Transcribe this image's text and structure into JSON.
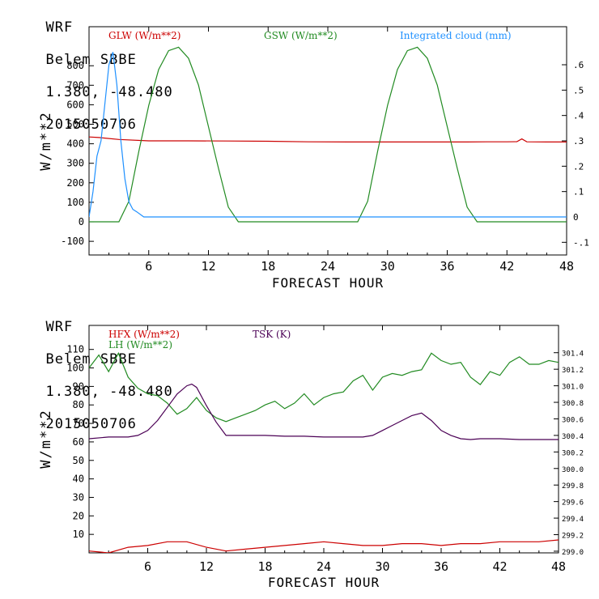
{
  "chart_data": [
    {
      "type": "line",
      "header": {
        "model": "WRF",
        "station": "Belem SBBE",
        "coords": "1.380, -48.480",
        "date": "2015050706"
      },
      "xlabel": "FORECAST HOUR",
      "ylabel": "W/m**2",
      "xlim": [
        0,
        48
      ],
      "ylim": [
        -170,
        1000
      ],
      "y2lim": [
        -0.15,
        0.75
      ],
      "x_ticks": [
        "6",
        "12",
        "18",
        "24",
        "30",
        "36",
        "42",
        "48"
      ],
      "y_ticks": [
        "-100",
        "0",
        "100",
        "200",
        "300",
        "400",
        "500",
        "600",
        "700",
        "800"
      ],
      "y2_ticks": [
        "-.1",
        "0",
        ".1",
        ".2",
        ".3",
        ".4",
        ".5",
        ".6"
      ],
      "legend": [
        {
          "label": "GLW (W/m**2)",
          "color": "#cc0000"
        },
        {
          "label": "GSW (W/m**2)",
          "color": "#228b22"
        },
        {
          "label": "Integrated cloud (mm)",
          "color": "#1e90ff"
        }
      ],
      "series": [
        {
          "name": "GLW",
          "axis": "left",
          "color": "#cc0000",
          "x": [
            0,
            1,
            3,
            6,
            10,
            14,
            18,
            22,
            26,
            30,
            34,
            38,
            40,
            42,
            43,
            43.5,
            44,
            46,
            48
          ],
          "y": [
            435,
            432,
            422,
            415,
            415,
            414,
            413,
            410,
            409,
            409,
            409,
            409,
            410,
            410,
            411,
            425,
            410,
            409,
            409
          ]
        },
        {
          "name": "GSW",
          "axis": "left",
          "color": "#228b22",
          "x": [
            0,
            3.0,
            4.0,
            5.0,
            6.0,
            7.0,
            8.0,
            9.0,
            10.0,
            11.0,
            12.0,
            13.0,
            14.0,
            15.0,
            27.0,
            28.0,
            29.0,
            30.0,
            31.0,
            32.0,
            33.0,
            34.0,
            35.0,
            36.0,
            37.0,
            38.0,
            39.0,
            48
          ],
          "y": [
            0,
            0,
            105,
            361,
            597,
            781,
            877,
            895,
            838,
            701,
            488,
            276,
            75,
            0,
            0,
            105,
            361,
            597,
            781,
            877,
            895,
            838,
            701,
            488,
            276,
            75,
            0,
            0
          ]
        },
        {
          "name": "Integrated cloud",
          "axis": "right",
          "color": "#1e90ff",
          "x": [
            0,
            0.4,
            0.8,
            1.2,
            1.6,
            2.0,
            2.4,
            2.8,
            3.2,
            3.6,
            4.0,
            4.4,
            4.8,
            5.5,
            6,
            48
          ],
          "y": [
            0,
            0.1,
            0.24,
            0.3,
            0.45,
            0.6,
            0.65,
            0.52,
            0.3,
            0.15,
            0.06,
            0.03,
            0.02,
            0.0,
            0.0,
            0.0
          ]
        }
      ]
    },
    {
      "type": "line",
      "header": {
        "model": "WRF",
        "station": "Belem SBBE",
        "coords": "1.380, -48.480",
        "date": "2015050706"
      },
      "xlabel": "FORECAST HOUR",
      "ylabel": "W/m**2",
      "xlim": [
        0,
        48
      ],
      "ylim": [
        0,
        123
      ],
      "y2lim": [
        298.98,
        301.73
      ],
      "x_ticks": [
        "6",
        "12",
        "18",
        "24",
        "30",
        "36",
        "42",
        "48"
      ],
      "y_ticks": [
        "10",
        "20",
        "30",
        "40",
        "50",
        "60",
        "70",
        "80",
        "90",
        "100",
        "110"
      ],
      "y2_ticks": [
        "299.0",
        "299.2",
        "299.4",
        "299.6",
        "299.8",
        "300.0",
        "300.2",
        "300.4",
        "300.6",
        "300.8",
        "301.0",
        "301.2",
        "301.4"
      ],
      "legend": [
        {
          "label": "HFX (W/m**2)",
          "color": "#cc0000"
        },
        {
          "label": "LH  (W/m**2)",
          "color": "#228b22"
        },
        {
          "label": "TSK (K)",
          "color": "#4b0055"
        }
      ],
      "series": [
        {
          "name": "HFX",
          "axis": "left",
          "color": "#cc0000",
          "x": [
            0,
            2,
            4,
            6,
            8,
            10,
            12,
            14,
            16,
            18,
            20,
            22,
            24,
            26,
            28,
            30,
            32,
            34,
            36,
            38,
            40,
            42,
            44,
            46,
            48
          ],
          "y": [
            1,
            0,
            3,
            4,
            6,
            6,
            3,
            1,
            2,
            3,
            4,
            5,
            6,
            5,
            4,
            4,
            5,
            5,
            4,
            5,
            5,
            6,
            6,
            6,
            7
          ]
        },
        {
          "name": "LH",
          "axis": "left",
          "color": "#228b22",
          "x": [
            0,
            1,
            2,
            3,
            4,
            5,
            6,
            7,
            8,
            9,
            10,
            11,
            12,
            13,
            14,
            15,
            16,
            17,
            18,
            19,
            20,
            21,
            22,
            23,
            24,
            25,
            26,
            27,
            28,
            29,
            30,
            31,
            32,
            33,
            34,
            35,
            36,
            37,
            38,
            39,
            40,
            41,
            42,
            43,
            44,
            45,
            46,
            47,
            48
          ],
          "y": [
            100,
            107,
            98,
            108,
            95,
            89,
            86,
            85,
            81,
            75,
            78,
            84,
            77,
            73,
            71,
            73,
            75,
            77,
            80,
            82,
            78,
            81,
            86,
            80,
            84,
            86,
            87,
            93,
            96,
            88,
            95,
            97,
            96,
            98,
            99,
            108,
            104,
            102,
            103,
            95,
            91,
            98,
            96,
            103,
            106,
            102,
            102,
            104,
            103
          ]
        },
        {
          "name": "TSK",
          "axis": "right",
          "color": "#4b0055",
          "x": [
            0,
            2,
            4,
            5,
            6,
            7,
            8,
            9,
            10,
            10.5,
            11,
            12,
            13,
            14,
            16,
            18,
            20,
            22,
            24,
            26,
            28,
            29,
            30,
            31,
            32,
            33,
            34,
            35,
            36,
            37,
            38,
            39,
            40,
            42,
            44,
            46,
            48
          ],
          "y": [
            300.36,
            300.38,
            300.38,
            300.4,
            300.46,
            300.58,
            300.74,
            300.9,
            301.0,
            301.02,
            300.98,
            300.76,
            300.56,
            300.4,
            300.4,
            300.4,
            300.39,
            300.39,
            300.38,
            300.38,
            300.38,
            300.4,
            300.46,
            300.52,
            300.58,
            300.64,
            300.67,
            300.58,
            300.46,
            300.4,
            300.36,
            300.35,
            300.36,
            300.36,
            300.35,
            300.35,
            300.35
          ]
        }
      ]
    }
  ]
}
